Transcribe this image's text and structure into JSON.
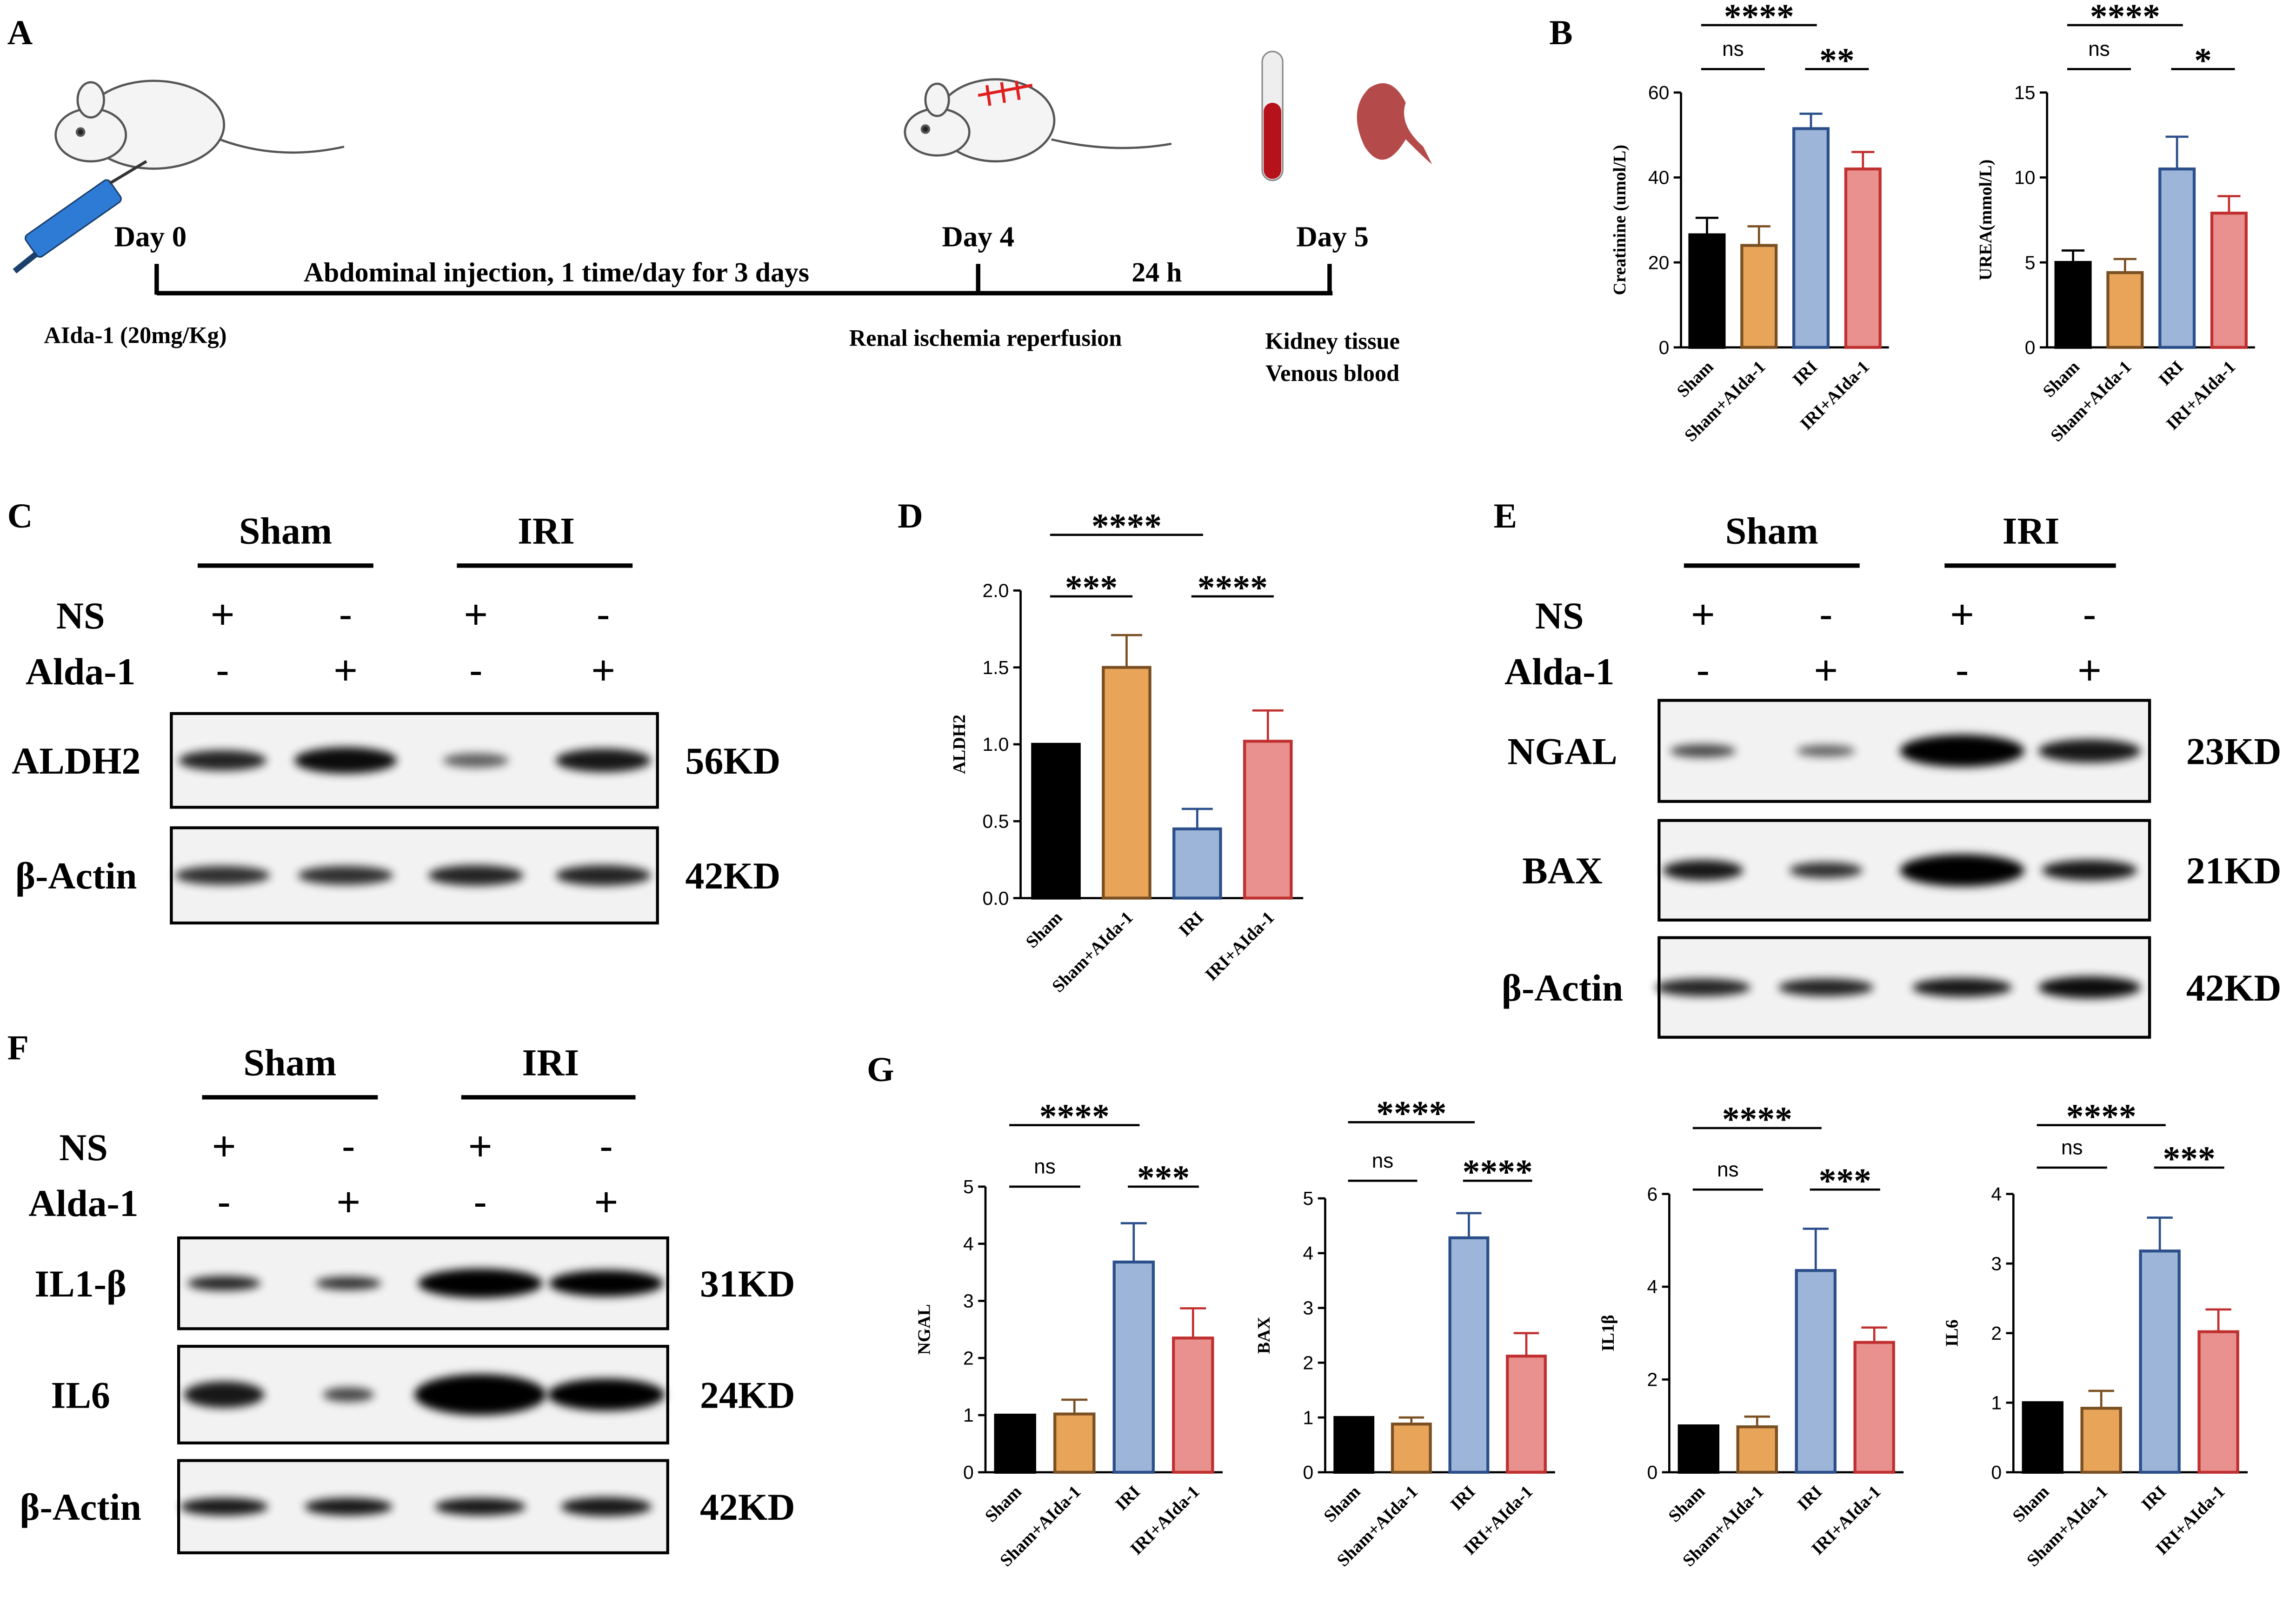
{
  "panel_labels": [
    "A",
    "B",
    "C",
    "D",
    "E",
    "F",
    "G"
  ],
  "timeline": {
    "days": [
      "Day 0",
      "Day 4",
      "Day 5"
    ],
    "phases": [
      "Abdominal injection, 1 time/day for 3 days",
      "24 h"
    ],
    "notes": [
      "AIda-1 (20mg/Kg)",
      "Renal ischemia reperfusion",
      "Kidney tissue",
      "Venous blood"
    ]
  },
  "blots": [
    {
      "groups": [
        "Sham",
        "IRI"
      ],
      "treatments": [
        {
          "name": "NS",
          "signs": [
            "+",
            "-",
            "+",
            "-"
          ]
        },
        {
          "name": "Alda-1",
          "signs": [
            "-",
            "+",
            "-",
            "+"
          ]
        }
      ],
      "rows": [
        {
          "protein": "ALDH2",
          "size": "56KD"
        },
        {
          "protein": "β-Actin",
          "size": "42KD"
        }
      ]
    },
    {
      "groups": [
        "Sham",
        "IRI"
      ],
      "treatments": [
        {
          "name": "NS",
          "signs": [
            "+",
            "-",
            "+",
            "-"
          ]
        },
        {
          "name": "Alda-1",
          "signs": [
            "-",
            "+",
            "-",
            "+"
          ]
        }
      ],
      "rows": [
        {
          "protein": "NGAL",
          "size": "23KD"
        },
        {
          "protein": "BAX",
          "size": "21KD"
        },
        {
          "protein": "β-Actin",
          "size": "42KD"
        }
      ]
    },
    {
      "groups": [
        "Sham",
        "IRI"
      ],
      "treatments": [
        {
          "name": "NS",
          "signs": [
            "+",
            "-",
            "+",
            "-"
          ]
        },
        {
          "name": "Alda-1",
          "signs": [
            "-",
            "+",
            "-",
            "+"
          ]
        }
      ],
      "rows": [
        {
          "protein": "IL1-β",
          "size": "31KD"
        },
        {
          "protein": "IL6",
          "size": "24KD"
        },
        {
          "protein": "β-Actin",
          "size": "42KD"
        }
      ]
    }
  ],
  "chart_data": [
    {
      "type": "bar",
      "ylabel": "Creatinine (umol/L)",
      "categories": [
        "Sham",
        "Sham+AIda-1",
        "IRI",
        "IRI+AIda-1"
      ],
      "values": [
        26.5,
        24,
        51.5,
        42
      ],
      "errors": [
        4,
        4.5,
        3.5,
        4
      ],
      "colors": [
        "#000000",
        "#e8a55a",
        "#9db5d8",
        "#e8918e"
      ],
      "edge_colors": [
        "#000000",
        "#7a4f22",
        "#2b4f8a",
        "#c03030"
      ],
      "ylim": [
        0,
        60
      ],
      "yticks": [
        0,
        20,
        40,
        60
      ],
      "significance": [
        {
          "pair": [
            0,
            2
          ],
          "label": "****"
        },
        {
          "pair": [
            0,
            1
          ],
          "label": "ns"
        },
        {
          "pair": [
            2,
            3
          ],
          "label": "**"
        }
      ]
    },
    {
      "type": "bar",
      "ylabel": "UREA(mmol/L)",
      "categories": [
        "Sham",
        "Sham+AIda-1",
        "IRI",
        "IRI+AIda-1"
      ],
      "values": [
        5,
        4.4,
        10.5,
        7.9
      ],
      "errors": [
        0.7,
        0.8,
        1.9,
        1.0
      ],
      "colors": [
        "#000000",
        "#e8a55a",
        "#9db5d8",
        "#e8918e"
      ],
      "edge_colors": [
        "#000000",
        "#7a4f22",
        "#2b4f8a",
        "#c03030"
      ],
      "ylim": [
        0,
        15
      ],
      "yticks": [
        0,
        5,
        10,
        15
      ],
      "significance": [
        {
          "pair": [
            0,
            2
          ],
          "label": "****"
        },
        {
          "pair": [
            0,
            1
          ],
          "label": "ns"
        },
        {
          "pair": [
            2,
            3
          ],
          "label": "*"
        }
      ]
    },
    {
      "type": "bar",
      "ylabel": "ALDH2",
      "categories": [
        "Sham",
        "Sham+AIda-1",
        "IRI",
        "IRI+AIda-1"
      ],
      "values": [
        1.0,
        1.5,
        0.45,
        1.02
      ],
      "errors": [
        0,
        0.21,
        0.13,
        0.2
      ],
      "colors": [
        "#000000",
        "#e8a55a",
        "#9db5d8",
        "#e8918e"
      ],
      "edge_colors": [
        "#000000",
        "#7a4f22",
        "#2b4f8a",
        "#c03030"
      ],
      "ylim": [
        0,
        2
      ],
      "yticks": [
        {
          "value": 0,
          "label": "0.0"
        },
        0.5,
        {
          "value": 1,
          "label": "1.0"
        },
        1.5,
        {
          "value": 2,
          "label": "2.0"
        }
      ],
      "significance": [
        {
          "pair": [
            0,
            2
          ],
          "label": "****"
        },
        {
          "pair": [
            0,
            1
          ],
          "label": "***"
        },
        {
          "pair": [
            2,
            3
          ],
          "label": "****"
        }
      ]
    },
    {
      "type": "bar",
      "ylabel": "NGAL",
      "categories": [
        "Sham",
        "Sham+AIda-1",
        "IRI",
        "IRI+AIda-1"
      ],
      "values": [
        1,
        1.02,
        3.68,
        2.35
      ],
      "errors": [
        0,
        0.25,
        0.68,
        0.52
      ],
      "colors": [
        "#000000",
        "#e8a55a",
        "#9db5d8",
        "#e8918e"
      ],
      "edge_colors": [
        "#000000",
        "#7a4f22",
        "#2b4f8a",
        "#c03030"
      ],
      "ylim": [
        0,
        5
      ],
      "yticks": [
        0,
        1,
        2,
        3,
        4,
        5
      ],
      "significance": [
        {
          "pair": [
            0,
            2
          ],
          "label": "****"
        },
        {
          "pair": [
            0,
            1
          ],
          "label": "ns"
        },
        {
          "pair": [
            2,
            3
          ],
          "label": "***"
        }
      ]
    },
    {
      "type": "bar",
      "ylabel": "BAX",
      "categories": [
        "Sham",
        "Sham+AIda-1",
        "IRI",
        "IRI+AIda-1"
      ],
      "values": [
        1,
        0.88,
        4.28,
        2.12
      ],
      "errors": [
        0,
        0.12,
        0.45,
        0.42
      ],
      "colors": [
        "#000000",
        "#e8a55a",
        "#9db5d8",
        "#e8918e"
      ],
      "edge_colors": [
        "#000000",
        "#7a4f22",
        "#2b4f8a",
        "#c03030"
      ],
      "ylim": [
        0,
        5
      ],
      "yticks": [
        0,
        1,
        2,
        3,
        4,
        5
      ],
      "significance": [
        {
          "pair": [
            0,
            2
          ],
          "label": "****"
        },
        {
          "pair": [
            0,
            1
          ],
          "label": "ns"
        },
        {
          "pair": [
            2,
            3
          ],
          "label": "****"
        }
      ]
    },
    {
      "type": "bar",
      "ylabel": "IL1β",
      "categories": [
        "Sham",
        "Sham+AIda-1",
        "IRI",
        "IRI+AIda-1"
      ],
      "values": [
        1,
        0.98,
        4.35,
        2.8
      ],
      "errors": [
        0,
        0.22,
        0.9,
        0.32
      ],
      "colors": [
        "#000000",
        "#e8a55a",
        "#9db5d8",
        "#e8918e"
      ],
      "edge_colors": [
        "#000000",
        "#7a4f22",
        "#2b4f8a",
        "#c03030"
      ],
      "ylim": [
        0,
        6
      ],
      "yticks": [
        0,
        2,
        4,
        6
      ],
      "significance": [
        {
          "pair": [
            0,
            2
          ],
          "label": "****"
        },
        {
          "pair": [
            0,
            1
          ],
          "label": "ns"
        },
        {
          "pair": [
            2,
            3
          ],
          "label": "***"
        }
      ]
    },
    {
      "type": "bar",
      "ylabel": "IL6",
      "categories": [
        "Sham",
        "Sham+AIda-1",
        "IRI",
        "IRI+AIda-1"
      ],
      "values": [
        1,
        0.92,
        3.18,
        2.02
      ],
      "errors": [
        0,
        0.25,
        0.48,
        0.32
      ],
      "colors": [
        "#000000",
        "#e8a55a",
        "#9db5d8",
        "#e8918e"
      ],
      "edge_colors": [
        "#000000",
        "#7a4f22",
        "#2b4f8a",
        "#c03030"
      ],
      "ylim": [
        0,
        4
      ],
      "yticks": [
        0,
        1,
        2,
        3,
        4
      ],
      "significance": [
        {
          "pair": [
            0,
            2
          ],
          "label": "****"
        },
        {
          "pair": [
            0,
            1
          ],
          "label": "ns"
        },
        {
          "pair": [
            2,
            3
          ],
          "label": "***"
        }
      ]
    }
  ]
}
